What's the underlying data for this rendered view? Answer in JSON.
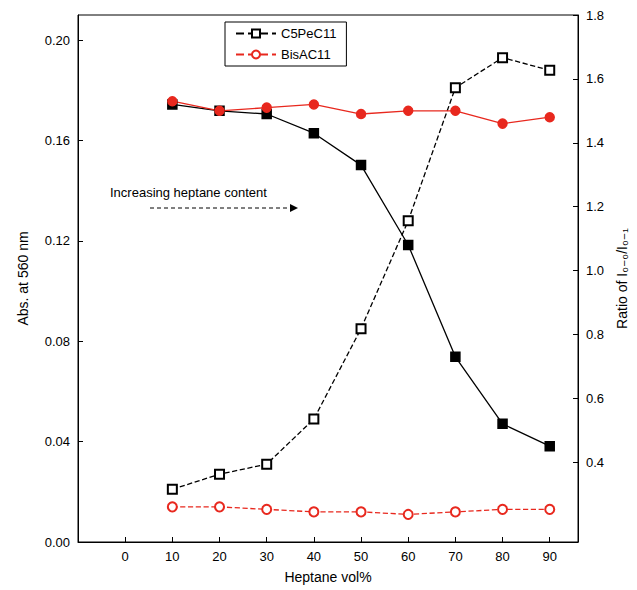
{
  "chart_data": {
    "type": "line",
    "x": [
      10,
      20,
      30,
      40,
      50,
      60,
      70,
      80,
      90
    ],
    "xlim": [
      -10,
      96
    ],
    "xticks": [
      0,
      10,
      20,
      30,
      40,
      50,
      60,
      70,
      80,
      90
    ],
    "ylim": [
      0,
      0.21
    ],
    "yticks": [
      {
        "value": 0,
        "label": "0.00"
      },
      {
        "value": 0.04,
        "label": "0.04"
      },
      {
        "value": 0.08,
        "label": "0.08"
      },
      {
        "value": 0.12,
        "label": "0.12"
      },
      {
        "value": 0.16,
        "label": "0.16"
      },
      {
        "value": 0.2,
        "label": "0.20"
      }
    ],
    "y2lim": [
      0.15,
      1.8
    ],
    "y2ticks": [
      0.4,
      0.6,
      0.8,
      {
        "value": 1,
        "label": "1.0"
      },
      1.2,
      1.4,
      1.6,
      1.8
    ],
    "xlabel": "Heptane vol%",
    "ylabel": "Abs. at 560 nm",
    "y2label": "Ratio of I₀₋₀/I₀₋₁",
    "annotations": [
      "Increasing heptane content"
    ],
    "legend": "top",
    "grid": false,
    "series": [
      {
        "name": "C5PeC11",
        "color": "#000000",
        "marker": "open_square",
        "line_style": "dashed",
        "values": [
          0.021,
          0.027,
          0.031,
          0.049,
          0.085,
          0.128,
          0.181,
          0.193,
          0.188
        ]
      },
      {
        "name": "C5PeC11",
        "color": "#000000",
        "marker": "square",
        "line_style": "solid",
        "axis": "y2",
        "values": [
          1.52,
          1.5,
          1.49,
          1.43,
          1.33,
          1.08,
          0.73,
          0.52,
          0.45
        ]
      },
      {
        "name": "BisAC11",
        "color": "#e8281e",
        "marker": "open_circle",
        "line_style": "dashed",
        "values": [
          0.014,
          0.014,
          0.013,
          0.012,
          0.012,
          0.011,
          0.012,
          0.013,
          0.013
        ]
      },
      {
        "name": "BisAC11",
        "color": "#e8281e",
        "marker": "circle",
        "line_style": "solid",
        "axis": "y2",
        "values": [
          1.53,
          1.5,
          1.51,
          1.52,
          1.49,
          1.5,
          1.5,
          1.46,
          1.48
        ]
      }
    ]
  }
}
